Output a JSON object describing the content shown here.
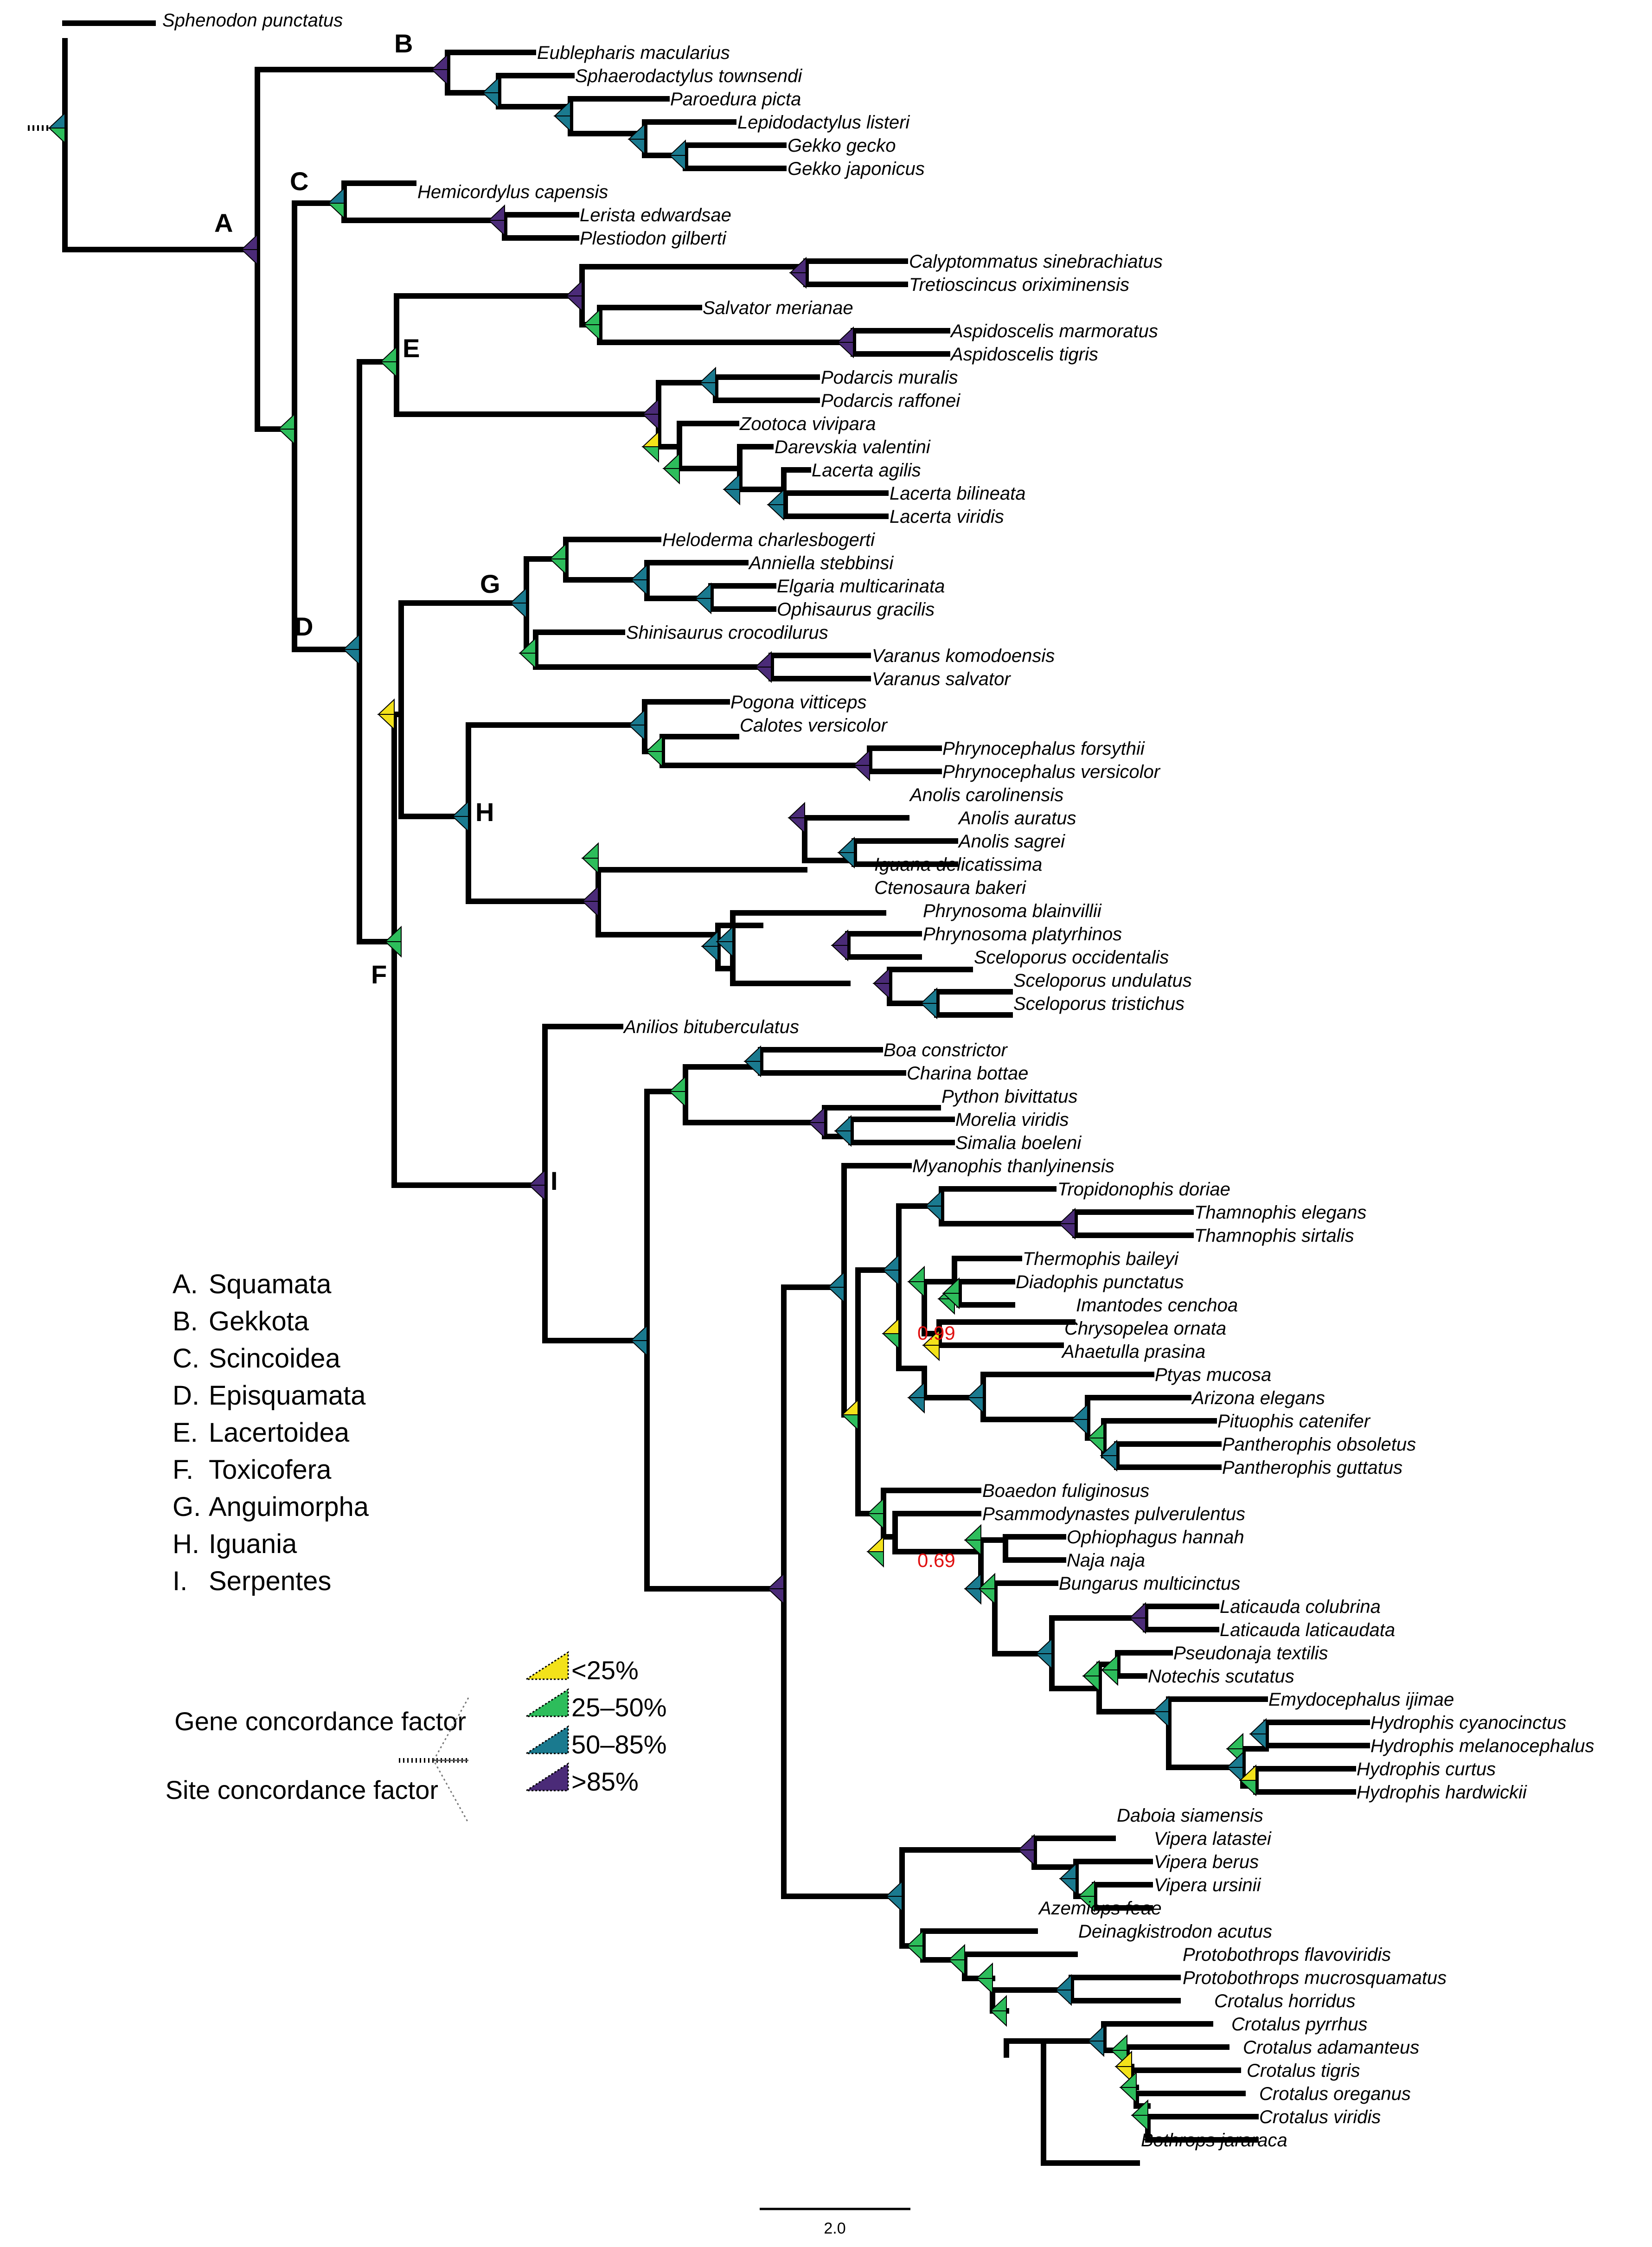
{
  "colors": {
    "yellow": "#f3e21a",
    "green": "#2dbd5b",
    "teal": "#1a7a8f",
    "purple": "#4b2b78",
    "branch": "#000000",
    "support_label": "#e01010"
  },
  "tips": [
    "Sphenodon punctatus",
    "Eublepharis macularius",
    "Sphaerodactylus townsendi",
    "Paroedura picta",
    "Lepidodactylus listeri",
    "Gekko gecko",
    "Gekko japonicus",
    "Hemicordylus capensis",
    "Lerista edwardsae",
    "Plestiodon gilberti",
    "Calyptommatus sinebrachiatus",
    "Tretioscincus oriximinensis",
    "Salvator merianae",
    "Aspidoscelis marmoratus",
    "Aspidoscelis tigris",
    "Podarcis muralis",
    "Podarcis raffonei",
    "Zootoca vivipara",
    "Darevskia valentini",
    "Lacerta agilis",
    "Lacerta bilineata",
    "Lacerta viridis",
    "Heloderma charlesbogerti",
    "Anniella stebbinsi",
    "Elgaria multicarinata",
    "Ophisaurus gracilis",
    "Shinisaurus crocodilurus",
    "Varanus komodoensis",
    "Varanus salvator",
    "Pogona vitticeps",
    "Calotes versicolor",
    "Phrynocephalus forsythii",
    "Phrynocephalus versicolor",
    "Anolis carolinensis",
    "Anolis auratus",
    "Anolis sagrei",
    "Iguana delicatissima",
    "Ctenosaura bakeri",
    "Phrynosoma blainvillii",
    "Phrynosoma platyrhinos",
    "Sceloporus occidentalis",
    "Sceloporus undulatus",
    "Sceloporus tristichus",
    "Anilios bituberculatus",
    "Boa constrictor",
    "Charina bottae",
    "Python bivittatus",
    "Morelia viridis",
    "Simalia boeleni",
    "Myanophis thanlyinensis",
    "Tropidonophis doriae",
    "Thamnophis elegans",
    "Thamnophis sirtalis",
    "Thermophis baileyi",
    "Diadophis punctatus",
    "Imantodes cenchoa",
    "Chrysopelea ornata",
    "Ahaetulla prasina",
    "Ptyas mucosa",
    "Arizona elegans",
    "Pituophis catenifer",
    "Pantherophis obsoletus",
    "Pantherophis guttatus",
    "Boaedon fuliginosus",
    "Psammodynastes pulverulentus",
    "Ophiophagus hannah",
    "Naja naja",
    "Bungarus multicinctus",
    "Laticauda colubrina",
    "Laticauda laticaudata",
    "Pseudonaja textilis",
    "Notechis scutatus",
    "Emydocephalus ijimae",
    "Hydrophis cyanocinctus",
    "Hydrophis melanocephalus",
    "Hydrophis curtus",
    "Hydrophis hardwickii",
    "Daboia siamensis",
    "Vipera latastei",
    "Vipera berus",
    "Vipera ursinii",
    "Azemiops feae",
    "Deinagkistrodon acutus",
    "Protobothrops flavoviridis",
    "Protobothrops mucrosquamatus",
    "Crotalus horridus",
    "Crotalus pyrrhus",
    "Crotalus adamanteus",
    "Crotalus tigris",
    "Crotalus oreganus",
    "Crotalus viridis",
    "Bothrops jararaca"
  ],
  "clade_letters": [
    "A",
    "B",
    "C",
    "D",
    "E",
    "F",
    "G",
    "H",
    "I"
  ],
  "support_values": [
    "0.99",
    "0.69"
  ],
  "legend": [
    {
      "letter": "A.",
      "name": "Squamata"
    },
    {
      "letter": "B.",
      "name": "Gekkota"
    },
    {
      "letter": "C.",
      "name": "Scincoidea"
    },
    {
      "letter": "D.",
      "name": "Episquamata"
    },
    {
      "letter": "E.",
      "name": "Lacertoidea"
    },
    {
      "letter": "F.",
      "name": "Toxicofera"
    },
    {
      "letter": "G.",
      "name": "Anguimorpha"
    },
    {
      "letter": "H.",
      "name": "Iguania"
    },
    {
      "letter": "I.",
      "name": "Serpentes"
    }
  ],
  "cf_legend": {
    "gene_label": "Gene concordance factor",
    "site_label": "Site concordance factor",
    "bins": [
      {
        "label": "<25%",
        "color": "yellow"
      },
      {
        "label": "25–50%",
        "color": "green"
      },
      {
        "label": "50–85%",
        "color": "teal"
      },
      {
        "label": ">85%",
        "color": "purple"
      }
    ]
  },
  "scale_bar": {
    "label": "2.0"
  }
}
